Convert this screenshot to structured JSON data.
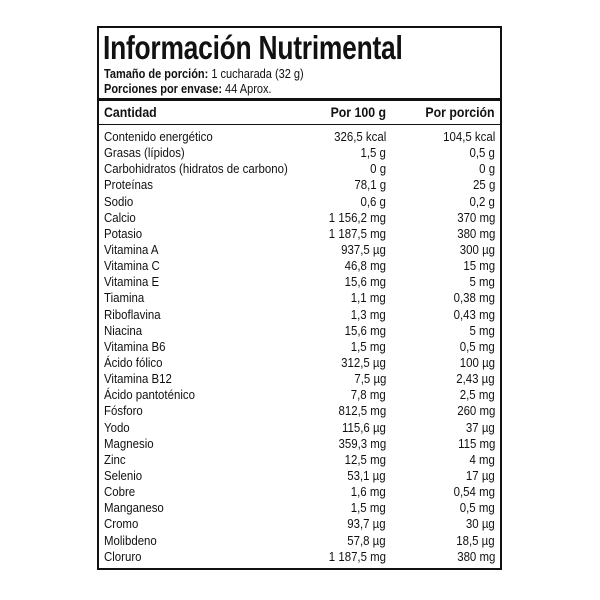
{
  "title": "Información Nutrimental",
  "serving_size": {
    "label": "Tamaño de porción:",
    "value": "1 cucharada (32 g)"
  },
  "servings_per_container": {
    "label": "Porciones por envase:",
    "value": "44 Aprox."
  },
  "table": {
    "headers": [
      "Cantidad",
      "Por 100 g",
      "Por porción"
    ],
    "rows": [
      [
        "Contenido energético",
        "326,5 kcal",
        "104,5 kcal"
      ],
      [
        "Grasas (lípidos)",
        "1,5 g",
        "0,5 g"
      ],
      [
        "Carbohidratos (hidratos de carbono)",
        "0 g",
        "0 g"
      ],
      [
        "Proteínas",
        "78,1 g",
        "25 g"
      ],
      [
        "Sodio",
        "0,6 g",
        "0,2 g"
      ],
      [
        "Calcio",
        "1 156,2 mg",
        "370 mg"
      ],
      [
        "Potasio",
        "1 187,5 mg",
        "380 mg"
      ],
      [
        "Vitamina A",
        "937,5 µg",
        "300 µg"
      ],
      [
        "Vitamina C",
        "46,8 mg",
        "15 mg"
      ],
      [
        "Vitamina E",
        "15,6 mg",
        "5 mg"
      ],
      [
        "Tiamina",
        "1,1 mg",
        "0,38 mg"
      ],
      [
        "Riboflavina",
        "1,3 mg",
        "0,43 mg"
      ],
      [
        "Niacina",
        "15,6 mg",
        "5 mg"
      ],
      [
        "Vitamina B6",
        "1,5 mg",
        "0,5 mg"
      ],
      [
        "Ácido fólico",
        "312,5 µg",
        "100 µg"
      ],
      [
        "Vitamina B12",
        "7,5 µg",
        "2,43 µg"
      ],
      [
        "Ácido pantoténico",
        "7,8 mg",
        "2,5 mg"
      ],
      [
        "Fósforo",
        "812,5 mg",
        "260 mg"
      ],
      [
        "Yodo",
        "115,6 µg",
        "37 µg"
      ],
      [
        "Magnesio",
        "359,3 mg",
        "115 mg"
      ],
      [
        "Zinc",
        "12,5 mg",
        "4 mg"
      ],
      [
        "Selenio",
        "53,1 µg",
        "17 µg"
      ],
      [
        "Cobre",
        "1,6 mg",
        "0,54 mg"
      ],
      [
        "Manganeso",
        "1,5 mg",
        "0,5 mg"
      ],
      [
        "Cromo",
        "93,7 µg",
        "30 µg"
      ],
      [
        "Molibdeno",
        "57,8 µg",
        "18,5 µg"
      ],
      [
        "Cloruro",
        "1 187,5 mg",
        "380 mg"
      ]
    ]
  }
}
